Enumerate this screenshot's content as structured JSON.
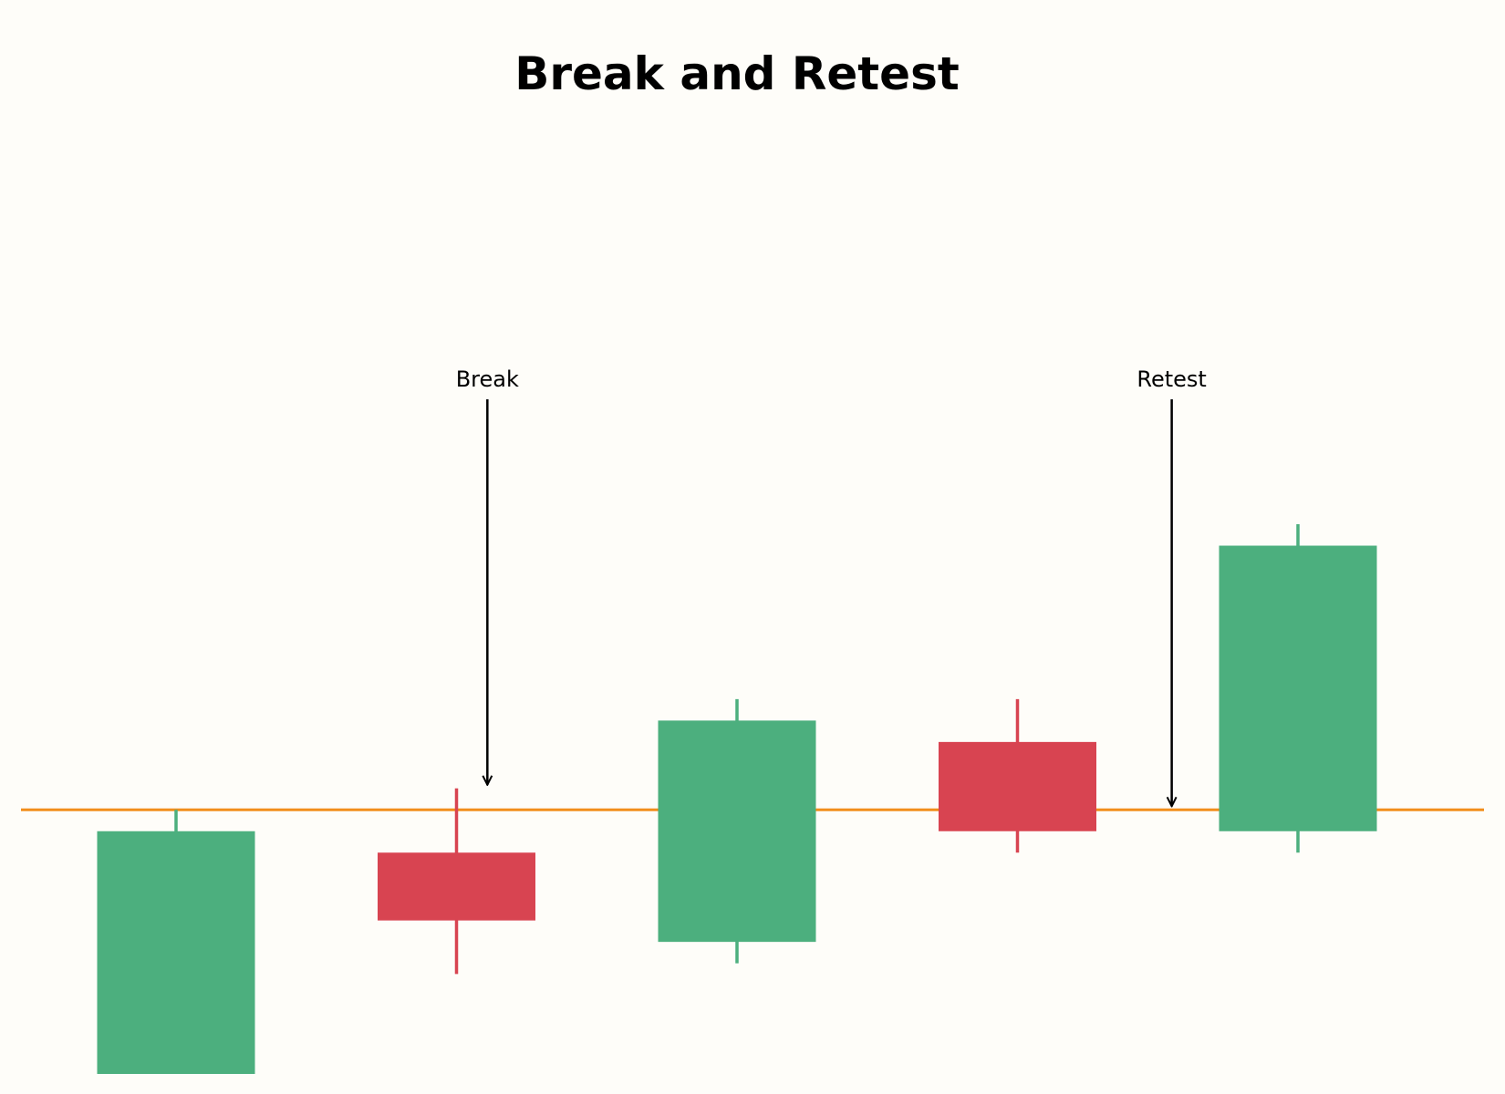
{
  "chart_data": {
    "type": "candlestick",
    "title": "Break and Retest",
    "xlabel": "",
    "ylabel": "",
    "grid": false,
    "legend": "none",
    "ylim": [
      94.2,
      107.2
    ],
    "candles": [
      {
        "open": 94.2,
        "close": 97.6,
        "high": 97.9,
        "low": 94.2
      },
      {
        "open": 97.3,
        "close": 96.35,
        "high": 98.2,
        "low": 95.6
      },
      {
        "open": 96.05,
        "close": 99.15,
        "high": 99.45,
        "low": 95.75
      },
      {
        "open": 98.85,
        "close": 97.6,
        "high": 99.45,
        "low": 97.3
      },
      {
        "open": 97.6,
        "close": 101.6,
        "high": 101.9,
        "low": 97.3
      }
    ],
    "level": {
      "value": 97.9,
      "color": "#f28e1c"
    },
    "annotations": [
      {
        "text": "Break",
        "x": 1.11,
        "y": 98.25
      },
      {
        "text": "Retest",
        "x": 3.55,
        "y": 97.95
      }
    ],
    "colors": {
      "up": "#4caf7e",
      "down": "#d84451",
      "arrow": "#000000",
      "background": "#fefdf9"
    }
  }
}
